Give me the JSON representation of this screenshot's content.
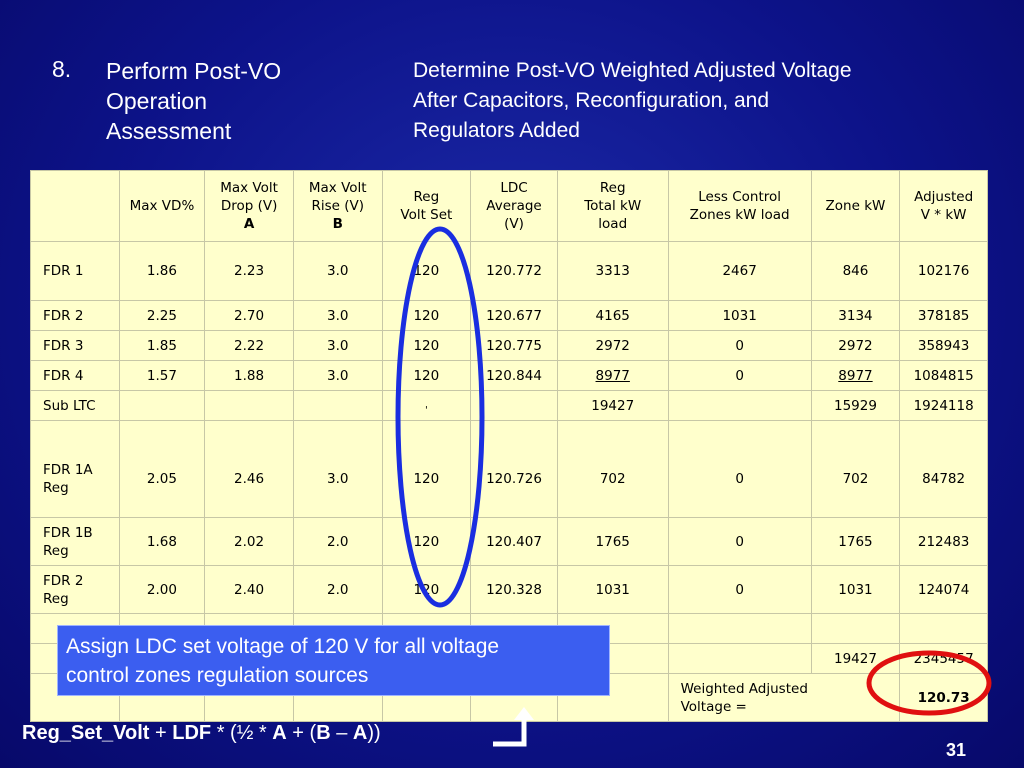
{
  "heading": {
    "number": "8.",
    "title_lines": [
      "Perform Post-VO",
      "Operation",
      "Assessment"
    ],
    "subtitle_lines": [
      "Determine Post-VO Weighted Adjusted Voltage",
      "After Capacitors, Reconfiguration, and",
      "Regulators Added"
    ]
  },
  "table": {
    "headers": [
      [
        ""
      ],
      [
        "Max VD%"
      ],
      [
        "Max Volt",
        "Drop (V)",
        "A"
      ],
      [
        "Max Volt",
        "Rise (V)",
        "B"
      ],
      [
        "Reg",
        "Volt Set"
      ],
      [
        "LDC",
        "Average",
        "(V)"
      ],
      [
        "Reg",
        "Total kW",
        "load"
      ],
      [
        "Less Control",
        "Zones kW load"
      ],
      [
        "Zone kW"
      ],
      [
        "Adjusted",
        "V * kW"
      ]
    ],
    "rows": [
      {
        "label": [
          "FDR 1"
        ],
        "cells": [
          "1.86",
          "2.23",
          "3.0",
          "120",
          "120.772",
          "3313",
          "2467",
          "846",
          "102176"
        ]
      },
      {
        "label": [
          "FDR 2"
        ],
        "cells": [
          "2.25",
          "2.70",
          "3.0",
          "120",
          "120.677",
          "4165",
          "1031",
          "3134",
          "378185"
        ]
      },
      {
        "label": [
          "FDR 3"
        ],
        "cells": [
          "1.85",
          "2.22",
          "3.0",
          "120",
          "120.775",
          "2972",
          "0",
          "2972",
          "358943"
        ]
      },
      {
        "label": [
          "FDR 4"
        ],
        "cells": [
          "1.57",
          "1.88",
          "3.0",
          "120",
          "120.844",
          "8977",
          "0",
          "8977",
          "1084815"
        ]
      },
      {
        "label": [
          "Sub LTC"
        ],
        "cells": [
          "",
          "",
          "",
          "'",
          "",
          "19427",
          "",
          "15929",
          "1924118"
        ]
      },
      {
        "label": [
          "FDR 1A",
          "Reg"
        ],
        "cells": [
          "2.05",
          "2.46",
          "3.0",
          "120",
          "120.726",
          "702",
          "0",
          "702",
          "84782"
        ]
      },
      {
        "label": [
          "FDR 1B",
          "Reg"
        ],
        "cells": [
          "1.68",
          "2.02",
          "2.0",
          "120",
          "120.407",
          "1765",
          "0",
          "1765",
          "212483"
        ]
      },
      {
        "label": [
          "FDR 2",
          "Reg"
        ],
        "cells": [
          "2.00",
          "2.40",
          "2.0",
          "120",
          "120.328",
          "1031",
          "0",
          "1031",
          "124074"
        ]
      }
    ],
    "totals": {
      "zone_kw": "19427",
      "adjusted": "2345457"
    },
    "weighted_label_lines": [
      "Weighted Adjusted",
      "Voltage ="
    ],
    "weighted_value": "120.73"
  },
  "callout": {
    "lines": [
      "Assign LDC set voltage of 120 V for all voltage",
      "control zones regulation sources"
    ]
  },
  "formula": {
    "reg": "Reg_Set_Volt",
    "plus1": " + ",
    "ldf": "LDF",
    "open": " * (½ * ",
    "a1": "A",
    "mid": " + (",
    "b": "B",
    "minus": " – ",
    "a2": "A",
    "close": "))"
  },
  "page_number": "31",
  "colors": {
    "background": "#0d138a",
    "table": "#ffffcc",
    "callout": "#3b5ef0",
    "ellipse_blue": "#1a2ee0",
    "ellipse_red": "#e01010"
  }
}
